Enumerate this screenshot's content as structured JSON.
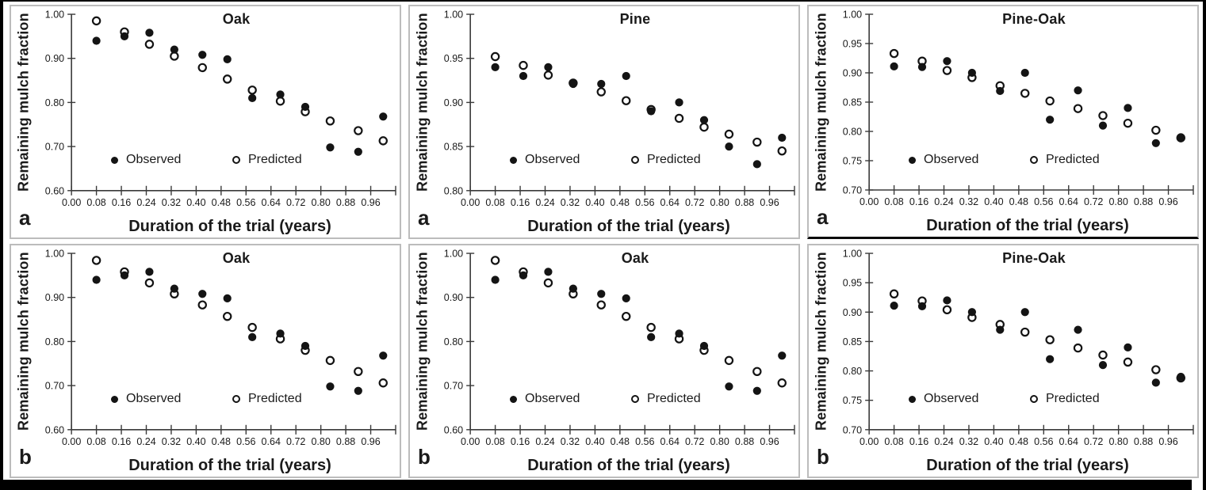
{
  "figure": {
    "background": "#ffffff",
    "frame_color": "#000000",
    "panel_border_color": "#bcbcbc",
    "marker_color": "#141414",
    "xlabel": "Duration of the trial (years)",
    "ylabel": "Remaining mulch fraction",
    "legend": {
      "observed": "Observed",
      "predicted": "Predicted"
    }
  },
  "chart_data": [
    {
      "type": "scatter",
      "panel_letter": "a",
      "title": "Oak",
      "xlabel": "Duration of the trial (years)",
      "ylabel": "Remaining mulch fraction",
      "xlim": [
        0.0,
        1.04
      ],
      "ylim": [
        0.6,
        1.0
      ],
      "xticks": [
        0.0,
        0.08,
        0.16,
        0.24,
        0.32,
        0.4,
        0.48,
        0.56,
        0.64,
        0.72,
        0.8,
        0.88,
        0.96
      ],
      "yticks": [
        0.6,
        0.7,
        0.8,
        0.9,
        1.0
      ],
      "x": [
        0.08,
        0.17,
        0.25,
        0.33,
        0.42,
        0.5,
        0.58,
        0.67,
        0.75,
        0.83,
        0.92,
        1.0
      ],
      "series": [
        {
          "name": "Observed",
          "marker": "filled",
          "values": [
            0.94,
            0.95,
            0.958,
            0.92,
            0.908,
            0.898,
            0.81,
            0.818,
            0.79,
            0.698,
            0.688,
            0.768
          ]
        },
        {
          "name": "Predicted",
          "marker": "open",
          "values": [
            0.985,
            0.96,
            0.932,
            0.905,
            0.879,
            0.853,
            0.828,
            0.803,
            0.779,
            0.758,
            0.736,
            0.713
          ]
        }
      ],
      "legend_position": "inside-bottom",
      "grid": false
    },
    {
      "type": "scatter",
      "panel_letter": "a",
      "title": "Pine",
      "xlabel": "Duration of the trial (years)",
      "ylabel": "Remaining mulch fraction",
      "xlim": [
        0.0,
        1.04
      ],
      "ylim": [
        0.8,
        1.0
      ],
      "xticks": [
        0.0,
        0.08,
        0.16,
        0.24,
        0.32,
        0.4,
        0.48,
        0.56,
        0.64,
        0.72,
        0.8,
        0.88,
        0.96
      ],
      "yticks": [
        0.8,
        0.85,
        0.9,
        0.95,
        1.0
      ],
      "x": [
        0.08,
        0.17,
        0.25,
        0.33,
        0.42,
        0.5,
        0.58,
        0.67,
        0.75,
        0.83,
        0.92,
        1.0
      ],
      "series": [
        {
          "name": "Observed",
          "marker": "filled",
          "values": [
            0.94,
            0.93,
            0.94,
            0.921,
            0.921,
            0.93,
            0.89,
            0.9,
            0.88,
            0.85,
            0.83,
            0.86
          ]
        },
        {
          "name": "Predicted",
          "marker": "open",
          "values": [
            0.952,
            0.942,
            0.931,
            0.922,
            0.912,
            0.902,
            0.892,
            0.882,
            0.872,
            0.864,
            0.855,
            0.845
          ]
        }
      ],
      "legend_position": "inside-bottom",
      "grid": false
    },
    {
      "type": "scatter",
      "panel_letter": "a",
      "title": "Pine-Oak",
      "xlabel": "Duration of the trial (years)",
      "ylabel": "Remaining mulch fraction",
      "xlim": [
        0.0,
        1.04
      ],
      "ylim": [
        0.7,
        1.0
      ],
      "xticks": [
        0.0,
        0.08,
        0.16,
        0.24,
        0.32,
        0.4,
        0.48,
        0.56,
        0.64,
        0.72,
        0.8,
        0.88,
        0.96
      ],
      "yticks": [
        0.7,
        0.75,
        0.8,
        0.85,
        0.9,
        0.95,
        1.0
      ],
      "x": [
        0.08,
        0.17,
        0.25,
        0.33,
        0.42,
        0.5,
        0.58,
        0.67,
        0.75,
        0.83,
        0.92,
        1.0
      ],
      "series": [
        {
          "name": "Observed",
          "marker": "filled",
          "values": [
            0.911,
            0.91,
            0.92,
            0.9,
            0.869,
            0.9,
            0.82,
            0.87,
            0.81,
            0.84,
            0.78,
            0.79
          ]
        },
        {
          "name": "Predicted",
          "marker": "open",
          "values": [
            0.933,
            0.92,
            0.904,
            0.892,
            0.878,
            0.865,
            0.852,
            0.839,
            0.827,
            0.814,
            0.802,
            0.789
          ]
        }
      ],
      "legend_position": "inside-bottom",
      "grid": false
    },
    {
      "type": "scatter",
      "panel_letter": "b",
      "title": "Oak",
      "xlabel": "Duration of the trial (years)",
      "ylabel": "Remaining mulch fraction",
      "xlim": [
        0.0,
        1.04
      ],
      "ylim": [
        0.6,
        1.0
      ],
      "xticks": [
        0.0,
        0.08,
        0.16,
        0.24,
        0.32,
        0.4,
        0.48,
        0.56,
        0.64,
        0.72,
        0.8,
        0.88,
        0.96
      ],
      "yticks": [
        0.6,
        0.7,
        0.8,
        0.9,
        1.0
      ],
      "x": [
        0.08,
        0.17,
        0.25,
        0.33,
        0.42,
        0.5,
        0.58,
        0.67,
        0.75,
        0.83,
        0.92,
        1.0
      ],
      "series": [
        {
          "name": "Observed",
          "marker": "filled",
          "values": [
            0.94,
            0.95,
            0.958,
            0.92,
            0.908,
            0.898,
            0.81,
            0.818,
            0.79,
            0.698,
            0.688,
            0.768
          ]
        },
        {
          "name": "Predicted",
          "marker": "open",
          "values": [
            0.984,
            0.958,
            0.933,
            0.908,
            0.883,
            0.857,
            0.832,
            0.806,
            0.78,
            0.757,
            0.732,
            0.706
          ]
        }
      ],
      "legend_position": "inside-bottom",
      "grid": false
    },
    {
      "type": "scatter",
      "panel_letter": "b",
      "title": "Oak",
      "xlabel": "Duration of the trial (years)",
      "ylabel": "Remaining mulch fraction",
      "xlim": [
        0.0,
        1.04
      ],
      "ylim": [
        0.6,
        1.0
      ],
      "xticks": [
        0.0,
        0.08,
        0.16,
        0.24,
        0.32,
        0.4,
        0.48,
        0.56,
        0.64,
        0.72,
        0.8,
        0.88,
        0.96
      ],
      "yticks": [
        0.6,
        0.7,
        0.8,
        0.9,
        1.0
      ],
      "x": [
        0.08,
        0.17,
        0.25,
        0.33,
        0.42,
        0.5,
        0.58,
        0.67,
        0.75,
        0.83,
        0.92,
        1.0
      ],
      "series": [
        {
          "name": "Observed",
          "marker": "filled",
          "values": [
            0.94,
            0.95,
            0.958,
            0.92,
            0.908,
            0.898,
            0.81,
            0.818,
            0.79,
            0.698,
            0.688,
            0.768
          ]
        },
        {
          "name": "Predicted",
          "marker": "open",
          "values": [
            0.984,
            0.958,
            0.933,
            0.908,
            0.883,
            0.857,
            0.832,
            0.806,
            0.78,
            0.757,
            0.732,
            0.706
          ]
        }
      ],
      "legend_position": "inside-bottom",
      "grid": false
    },
    {
      "type": "scatter",
      "panel_letter": "b",
      "title": "Pine-Oak",
      "xlabel": "Duration of the trial (years)",
      "ylabel": "Remaining mulch fraction",
      "xlim": [
        0.0,
        1.04
      ],
      "ylim": [
        0.7,
        1.0
      ],
      "xticks": [
        0.0,
        0.08,
        0.16,
        0.24,
        0.32,
        0.4,
        0.48,
        0.56,
        0.64,
        0.72,
        0.8,
        0.88,
        0.96
      ],
      "yticks": [
        0.7,
        0.75,
        0.8,
        0.85,
        0.9,
        0.95,
        1.0
      ],
      "x": [
        0.08,
        0.17,
        0.25,
        0.33,
        0.42,
        0.5,
        0.58,
        0.67,
        0.75,
        0.83,
        0.92,
        1.0
      ],
      "series": [
        {
          "name": "Observed",
          "marker": "filled",
          "values": [
            0.911,
            0.91,
            0.92,
            0.9,
            0.87,
            0.9,
            0.82,
            0.87,
            0.81,
            0.84,
            0.78,
            0.79
          ]
        },
        {
          "name": "Predicted",
          "marker": "open",
          "values": [
            0.931,
            0.919,
            0.904,
            0.891,
            0.879,
            0.866,
            0.853,
            0.839,
            0.827,
            0.815,
            0.802,
            0.788
          ]
        }
      ],
      "legend_position": "inside-bottom",
      "grid": false
    }
  ]
}
